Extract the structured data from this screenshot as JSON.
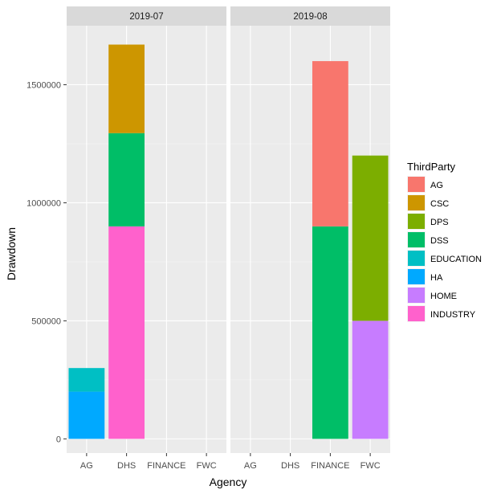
{
  "chart_data": {
    "type": "bar",
    "stacked": true,
    "facet_by": "month",
    "panels": [
      {
        "label": "2019-07",
        "bars": [
          {
            "agency": "AG",
            "segments": [
              {
                "party": "HA",
                "value": 200000
              },
              {
                "party": "EDUCATION",
                "value": 100000
              }
            ]
          },
          {
            "agency": "DHS",
            "segments": [
              {
                "party": "INDUSTRY",
                "value": 900000
              },
              {
                "party": "DSS",
                "value": 395000
              },
              {
                "party": "CSC",
                "value": 375000
              }
            ]
          }
        ]
      },
      {
        "label": "2019-08",
        "bars": [
          {
            "agency": "FINANCE",
            "segments": [
              {
                "party": "DSS",
                "value": 900000
              },
              {
                "party": "AG",
                "value": 700000
              }
            ]
          },
          {
            "agency": "FWC",
            "segments": [
              {
                "party": "HOME",
                "value": 500000
              },
              {
                "party": "DPS",
                "value": 700000
              }
            ]
          }
        ]
      }
    ],
    "categories": [
      "AG",
      "DHS",
      "FINANCE",
      "FWC"
    ],
    "xlabel": "Agency",
    "ylabel": "Drawdown",
    "yticks": [
      0,
      500000,
      1000000,
      1500000
    ],
    "ytick_labels": [
      "0",
      "500000",
      "1000000",
      "1500000"
    ],
    "ylim": [
      -60000,
      1750000
    ],
    "grid": true,
    "legend": {
      "title": "ThirdParty",
      "position": "right",
      "entries": [
        {
          "name": "AG",
          "color": "#F8766D"
        },
        {
          "name": "CSC",
          "color": "#CD9600"
        },
        {
          "name": "DPS",
          "color": "#7CAE00"
        },
        {
          "name": "DSS",
          "color": "#00BE67"
        },
        {
          "name": "EDUCATION",
          "color": "#00BFC4"
        },
        {
          "name": "HA",
          "color": "#00A9FF"
        },
        {
          "name": "HOME",
          "color": "#C77CFF"
        },
        {
          "name": "INDUSTRY",
          "color": "#FF61CC"
        }
      ]
    },
    "colors": {
      "panel_background": "#EBEBEB",
      "strip_background": "#D9D9D9",
      "grid": "#FFFFFF"
    }
  }
}
